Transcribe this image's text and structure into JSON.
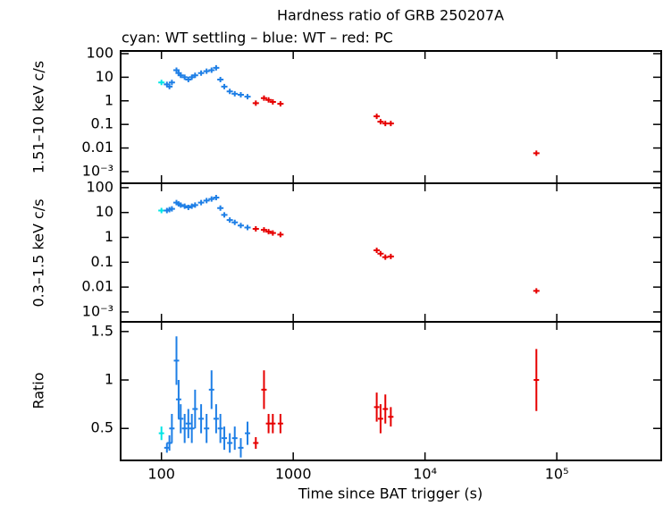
{
  "chart_data": [
    {
      "type": "scatter",
      "title": "Hardness ratio of GRB 250207A",
      "subtitle": "cyan: WT settling – blue: WT – red: PC",
      "y_label": "1.51–10 keV c/s",
      "xlog": true,
      "ylog": true,
      "xlim": [
        49,
        620000
      ],
      "ylim": [
        0.00032,
        130
      ],
      "yticks": [
        100,
        10,
        1,
        0.1,
        0.01,
        {
          "value": 0.001,
          "label": "10⁻³"
        }
      ],
      "series": [
        {
          "color": "#00e5e5",
          "x": [
            100
          ],
          "values": [
            6
          ]
        },
        {
          "color": "#1e7fe6",
          "x": [
            110,
            115,
            120,
            130,
            135,
            140,
            150,
            160,
            170,
            180,
            200,
            220,
            240,
            260,
            280,
            300,
            330,
            360,
            400,
            450
          ],
          "values": [
            5,
            4,
            6,
            20,
            15,
            12,
            10,
            8,
            10,
            12,
            15,
            18,
            20,
            25,
            8,
            4,
            2.5,
            2,
            1.8,
            1.5
          ]
        },
        {
          "color": "#e60000",
          "x": [
            520,
            600,
            650,
            700,
            800,
            4300,
            4600,
            5000,
            5500,
            70000
          ],
          "values": [
            0.8,
            1.3,
            1.1,
            0.9,
            0.75,
            0.22,
            0.13,
            0.11,
            0.11,
            0.006
          ]
        }
      ]
    },
    {
      "type": "scatter",
      "y_label": "0.3–1.5 keV c/s",
      "xlog": true,
      "ylog": true,
      "xlim": [
        49,
        620000
      ],
      "ylim": [
        0.0004,
        150
      ],
      "yticks": [
        100,
        10,
        1,
        0.1,
        0.01,
        {
          "value": 0.001,
          "label": "10⁻³"
        }
      ],
      "series": [
        {
          "color": "#00e5e5",
          "x": [
            100
          ],
          "values": [
            12
          ]
        },
        {
          "color": "#1e7fe6",
          "x": [
            110,
            115,
            120,
            130,
            135,
            140,
            150,
            160,
            170,
            180,
            200,
            220,
            240,
            260,
            280,
            300,
            330,
            360,
            400,
            450
          ],
          "values": [
            12,
            13,
            14,
            25,
            22,
            20,
            18,
            16,
            18,
            20,
            25,
            30,
            35,
            40,
            15,
            8,
            5,
            4,
            3,
            2.5
          ]
        },
        {
          "color": "#e60000",
          "x": [
            520,
            600,
            650,
            700,
            800,
            4300,
            4600,
            5000,
            5500,
            70000
          ],
          "values": [
            2.2,
            2.0,
            1.7,
            1.5,
            1.3,
            0.3,
            0.22,
            0.16,
            0.17,
            0.007
          ]
        }
      ]
    },
    {
      "type": "errorbar",
      "y_label": "Ratio",
      "x_label": "Time since BAT trigger (s)",
      "xlog": true,
      "xlim": [
        49,
        620000
      ],
      "ylim": [
        0.17,
        1.6
      ],
      "xticks": [
        100,
        1000,
        {
          "value": 10000,
          "label": "10⁴"
        },
        {
          "value": 100000,
          "label": "10⁵"
        }
      ],
      "yticks": [
        1.5,
        1,
        0.5
      ],
      "series": [
        {
          "color": "#00e5e5",
          "x": [
            100
          ],
          "values": [
            0.45
          ],
          "errors": [
            0.07
          ]
        },
        {
          "color": "#1e7fe6",
          "x": [
            110,
            115,
            120,
            130,
            135,
            140,
            150,
            160,
            170,
            180,
            200,
            220,
            240,
            260,
            280,
            300,
            330,
            360,
            400,
            450
          ],
          "values": [
            0.3,
            0.35,
            0.5,
            1.2,
            0.8,
            0.6,
            0.5,
            0.55,
            0.5,
            0.7,
            0.6,
            0.5,
            0.9,
            0.6,
            0.5,
            0.4,
            0.35,
            0.4,
            0.3,
            0.45
          ],
          "errors": [
            0.05,
            0.08,
            0.15,
            0.25,
            0.2,
            0.15,
            0.15,
            0.15,
            0.15,
            0.2,
            0.15,
            0.15,
            0.2,
            0.15,
            0.15,
            0.12,
            0.1,
            0.12,
            0.1,
            0.12
          ]
        },
        {
          "color": "#e60000",
          "x": [
            520,
            600,
            650,
            700,
            800,
            4300,
            4600,
            5000,
            5500,
            70000
          ],
          "values": [
            0.35,
            0.9,
            0.55,
            0.55,
            0.55,
            0.72,
            0.6,
            0.7,
            0.62,
            1.0
          ],
          "errors": [
            0.06,
            0.2,
            0.1,
            0.1,
            0.1,
            0.15,
            0.15,
            0.15,
            0.1,
            0.32
          ]
        }
      ]
    }
  ]
}
